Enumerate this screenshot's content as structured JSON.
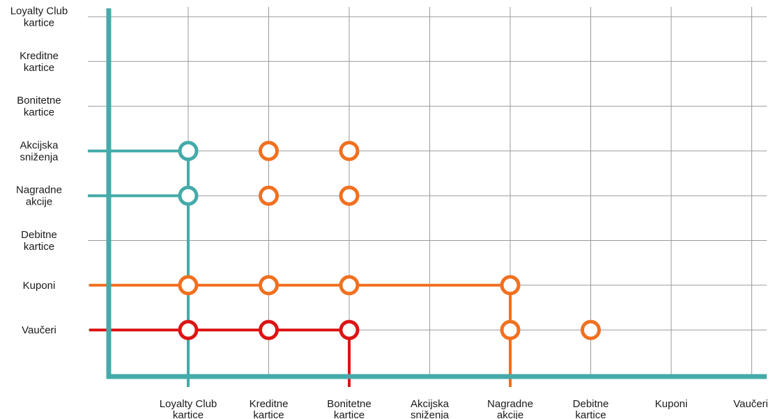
{
  "chart_data": {
    "type": "scatter",
    "categories": [
      "Loyalty Club kartice",
      "Kreditne kartice",
      "Bonitetne kartice",
      "Akcijska sniženja",
      "Nagradne akcije",
      "Debitne kartice",
      "Kuponi",
      "Vaučeri"
    ],
    "x_labels": [
      [
        "Loyalty Club",
        "kartice"
      ],
      [
        "Kreditne",
        "kartice"
      ],
      [
        "Bonitetne",
        "kartice"
      ],
      [
        "Akcijska",
        "sniženja"
      ],
      [
        "Nagradne",
        "akcije"
      ],
      [
        "Debitne",
        "kartice"
      ],
      [
        "Kuponi"
      ],
      [
        "Vaučeri"
      ]
    ],
    "y_labels": [
      [
        "Loyalty Club",
        "kartice"
      ],
      [
        "Kreditne",
        "kartice"
      ],
      [
        "Bonitetne",
        "kartice"
      ],
      [
        "Akcijska",
        "sniženja"
      ],
      [
        "Nagradne",
        "akcije"
      ],
      [
        "Debitne",
        "kartice"
      ],
      [
        "Kuponi"
      ],
      [
        "Vaučeri"
      ]
    ],
    "grid": true,
    "colors": {
      "axis": "#45aaaa",
      "orange": "#f07020",
      "red": "#dc1414",
      "grid": "#9a9a9a"
    },
    "series": [
      {
        "color": "teal",
        "points": [
          [
            0,
            3
          ],
          [
            0,
            4
          ]
        ]
      },
      {
        "color": "orange",
        "points": [
          [
            1,
            3
          ],
          [
            2,
            3
          ],
          [
            1,
            4
          ],
          [
            2,
            4
          ],
          [
            0,
            6
          ],
          [
            1,
            6
          ],
          [
            2,
            6
          ],
          [
            4,
            6
          ],
          [
            4,
            7
          ],
          [
            5,
            7
          ]
        ]
      },
      {
        "color": "red",
        "points": [
          [
            0,
            7
          ],
          [
            1,
            7
          ],
          [
            2,
            7
          ]
        ]
      }
    ]
  }
}
